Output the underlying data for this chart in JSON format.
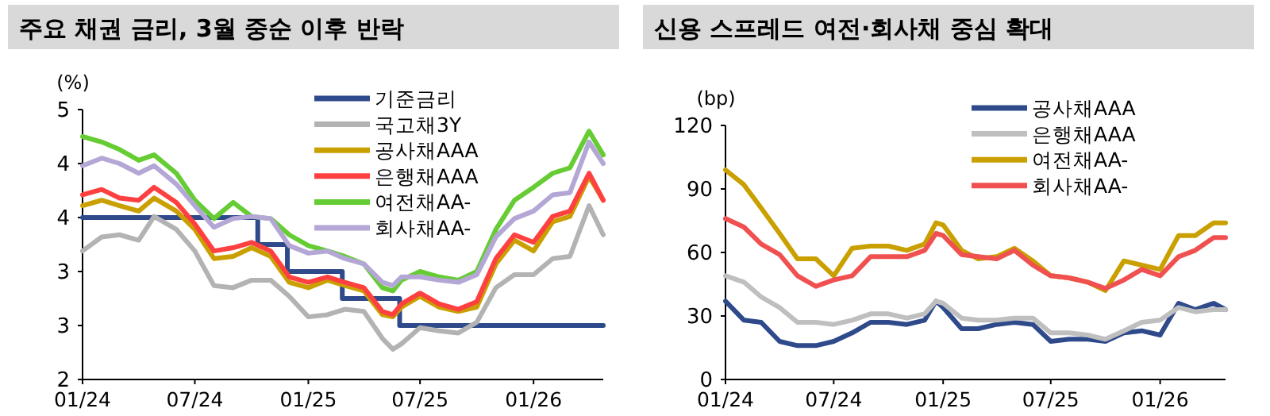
{
  "chart_data": [
    {
      "type": "line",
      "title": "주요 채권 금리, 3월 중순 이후 반락",
      "ylabel": "(%)",
      "legend": "top right",
      "x": [
        "2024-01-01",
        "2024-02-01",
        "2024-03-01",
        "2024-04-01",
        "2024-04-26",
        "2024-06-01",
        "2024-07-01",
        "2024-08-01",
        "2024-09-01",
        "2024-10-01",
        "2024-11-01",
        "2024-12-01",
        "2025-01-01",
        "2025-02-01",
        "2025-03-01",
        "2025-04-01",
        "2025-05-01",
        "2025-05-18",
        "2025-06-01",
        "2025-07-01",
        "2025-08-01",
        "2025-09-01",
        "2025-10-01",
        "2025-11-01",
        "2025-12-01",
        "2026-01-01",
        "2026-02-01",
        "2026-03-01",
        "2026-04-01",
        "2026-04-24"
      ],
      "xlim": [
        "2024-01-01",
        "2026-04-24"
      ],
      "xticks": [
        {
          "value": "2024-01-01",
          "label": "01/24"
        },
        {
          "value": "2024-07-01",
          "label": "07/24"
        },
        {
          "value": "2025-01-01",
          "label": "01/25"
        },
        {
          "value": "2025-07-01",
          "label": "07/25"
        },
        {
          "value": "2026-01-01",
          "label": "01/26"
        }
      ],
      "ylim": [
        2,
        4.5
      ],
      "yticks": [
        {
          "value": 2,
          "label": "2"
        },
        {
          "value": 2.5,
          "label": "3"
        },
        {
          "value": 3,
          "label": "3"
        },
        {
          "value": 3.5,
          "label": "4"
        },
        {
          "value": 4,
          "label": "4"
        },
        {
          "value": 4.5,
          "label": "5"
        }
      ],
      "series": [
        {
          "name": "기준금리",
          "color": "#2e4a8b",
          "type": "step",
          "x": [
            "2024-01-01",
            "2024-10-11",
            "2024-11-28",
            "2025-02-25",
            "2025-05-29",
            "2026-04-24"
          ],
          "values": [
            3.5,
            3.25,
            3.0,
            2.75,
            2.5,
            2.5
          ]
        },
        {
          "name": "국고채3Y",
          "color": "#b3b3b3",
          "values": [
            3.19,
            3.32,
            3.34,
            3.29,
            3.51,
            3.39,
            3.19,
            2.87,
            2.85,
            2.92,
            2.92,
            2.77,
            2.58,
            2.6,
            2.65,
            2.63,
            2.38,
            2.28,
            2.33,
            2.48,
            2.45,
            2.43,
            2.53,
            2.85,
            2.97,
            2.97,
            3.12,
            3.14,
            3.61,
            3.34
          ]
        },
        {
          "name": "공사채AAA",
          "color": "#c9a000",
          "values": [
            3.61,
            3.66,
            3.61,
            3.56,
            3.68,
            3.56,
            3.39,
            3.12,
            3.14,
            3.22,
            3.14,
            2.9,
            2.85,
            2.92,
            2.87,
            2.82,
            2.6,
            2.58,
            2.67,
            2.77,
            2.67,
            2.63,
            2.67,
            3.07,
            3.29,
            3.19,
            3.46,
            3.51,
            3.88,
            3.66
          ]
        },
        {
          "name": "은행채AAA",
          "color": "#ff4040",
          "values": [
            3.71,
            3.76,
            3.68,
            3.66,
            3.78,
            3.64,
            3.44,
            3.19,
            3.22,
            3.27,
            3.19,
            2.95,
            2.9,
            2.95,
            2.9,
            2.85,
            2.63,
            2.6,
            2.7,
            2.8,
            2.7,
            2.65,
            2.72,
            3.12,
            3.34,
            3.27,
            3.51,
            3.56,
            3.91,
            3.66
          ]
        },
        {
          "name": "여전채AA-",
          "color": "#66cc33",
          "values": [
            4.25,
            4.2,
            4.13,
            4.03,
            4.08,
            3.91,
            3.66,
            3.49,
            3.64,
            3.51,
            3.49,
            3.34,
            3.24,
            3.19,
            3.14,
            3.07,
            2.85,
            2.82,
            2.92,
            3.0,
            2.95,
            2.92,
            3.0,
            3.39,
            3.66,
            3.78,
            3.91,
            3.96,
            4.3,
            4.08
          ]
        },
        {
          "name": "회사채AA-",
          "color": "#b4a7d6",
          "values": [
            3.98,
            4.05,
            4.0,
            3.91,
            3.98,
            3.81,
            3.61,
            3.41,
            3.49,
            3.51,
            3.49,
            3.24,
            3.17,
            3.19,
            3.12,
            3.07,
            2.9,
            2.87,
            2.95,
            2.95,
            2.92,
            2.9,
            2.97,
            3.32,
            3.49,
            3.56,
            3.71,
            3.73,
            4.2,
            4.0
          ]
        }
      ]
    },
    {
      "type": "line",
      "title": "신용 스프레드 여전·회사채 중심 확대",
      "ylabel": "(bp)",
      "legend": "top right",
      "x": [
        "2024-01-01",
        "2024-02-01",
        "2024-03-01",
        "2024-04-01",
        "2024-05-01",
        "2024-06-01",
        "2024-07-01",
        "2024-08-01",
        "2024-09-01",
        "2024-10-01",
        "2024-11-01",
        "2024-12-01",
        "2024-12-20",
        "2025-01-01",
        "2025-02-01",
        "2025-03-01",
        "2025-04-01",
        "2025-05-01",
        "2025-06-01",
        "2025-07-01",
        "2025-08-01",
        "2025-09-01",
        "2025-10-01",
        "2025-11-01",
        "2025-12-01",
        "2026-01-01",
        "2026-02-01",
        "2026-03-01",
        "2026-04-01",
        "2026-04-21"
      ],
      "xlim": [
        "2024-01-01",
        "2026-04-21"
      ],
      "xticks": [
        {
          "value": "2024-01-01",
          "label": "01/24"
        },
        {
          "value": "2024-07-01",
          "label": "07/24"
        },
        {
          "value": "2025-01-01",
          "label": "01/25"
        },
        {
          "value": "2025-07-01",
          "label": "07/25"
        },
        {
          "value": "2026-01-01",
          "label": "01/26"
        }
      ],
      "ylim": [
        0,
        120
      ],
      "yticks": [
        0,
        30,
        60,
        90,
        120
      ],
      "series": [
        {
          "name": "공사채AAA",
          "color": "#2e4a8b",
          "values": [
            37,
            28,
            27,
            18,
            16,
            16,
            18,
            22,
            27,
            27,
            26,
            28,
            37,
            34,
            24,
            24,
            26,
            27,
            26,
            18,
            19,
            19,
            18,
            22,
            23,
            21,
            36,
            33,
            36,
            33
          ]
        },
        {
          "name": "은행채AAA",
          "color": "#bfbfbf",
          "values": [
            49,
            46,
            39,
            34,
            27,
            27,
            26,
            28,
            31,
            31,
            29,
            31,
            37,
            36,
            29,
            28,
            28,
            29,
            29,
            22,
            22,
            21,
            19,
            23,
            27,
            28,
            34,
            32,
            33,
            33
          ]
        },
        {
          "name": "여전채AA-",
          "color": "#c9a000",
          "values": [
            99,
            92,
            81,
            69,
            57,
            57,
            49,
            62,
            63,
            63,
            61,
            64,
            74,
            73,
            61,
            57,
            58,
            62,
            56,
            49,
            48,
            46,
            42,
            56,
            54,
            52,
            68,
            68,
            74,
            74
          ]
        },
        {
          "name": "회사채AA-",
          "color": "#f05050",
          "values": [
            76,
            72,
            64,
            59,
            49,
            44,
            47,
            49,
            58,
            58,
            58,
            61,
            69,
            68,
            59,
            58,
            57,
            61,
            54,
            49,
            48,
            46,
            43,
            47,
            52,
            49,
            58,
            61,
            67,
            67
          ]
        }
      ]
    }
  ]
}
